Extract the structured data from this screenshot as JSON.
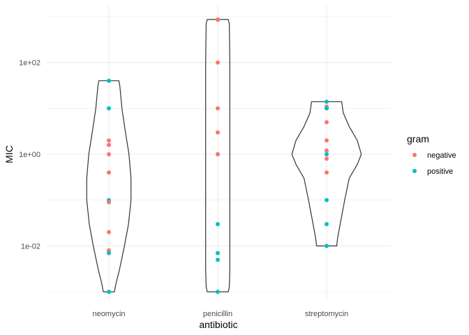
{
  "chart_data": {
    "type": "violin",
    "xlabel": "antibiotic",
    "ylabel": "MIC",
    "y_scale": "log10",
    "ylim": [
      0.001,
      900
    ],
    "y_ticks": [
      {
        "value": 0.01,
        "label": "1e-02"
      },
      {
        "value": 1,
        "label": "1e+00"
      },
      {
        "value": 100,
        "label": "1e+02"
      }
    ],
    "categories": [
      "neomycin",
      "penicillin",
      "streptomycin"
    ],
    "legend": {
      "title": "gram",
      "position": "right",
      "entries": [
        {
          "label": "negative",
          "color": "#F8766D"
        },
        {
          "label": "positive",
          "color": "#00BFC4"
        }
      ]
    },
    "grid": true,
    "violin_outline_color": "#333333",
    "points": [
      {
        "category": "neomycin",
        "value": 40,
        "gram": "positive"
      },
      {
        "category": "neomycin",
        "value": 10,
        "gram": "positive"
      },
      {
        "category": "neomycin",
        "value": 2,
        "gram": "negative"
      },
      {
        "category": "neomycin",
        "value": 1.6,
        "gram": "negative"
      },
      {
        "category": "neomycin",
        "value": 1,
        "gram": "negative"
      },
      {
        "category": "neomycin",
        "value": 0.4,
        "gram": "negative"
      },
      {
        "category": "neomycin",
        "value": 0.1,
        "gram": "positive"
      },
      {
        "category": "neomycin",
        "value": 0.09,
        "gram": "negative"
      },
      {
        "category": "neomycin",
        "value": 0.02,
        "gram": "negative"
      },
      {
        "category": "neomycin",
        "value": 0.008,
        "gram": "negative"
      },
      {
        "category": "neomycin",
        "value": 0.007,
        "gram": "positive"
      },
      {
        "category": "neomycin",
        "value": 0.001,
        "gram": "positive"
      },
      {
        "category": "penicillin",
        "value": 870,
        "gram": "negative"
      },
      {
        "category": "penicillin",
        "value": 850,
        "gram": "negative"
      },
      {
        "category": "penicillin",
        "value": 100,
        "gram": "negative"
      },
      {
        "category": "penicillin",
        "value": 10,
        "gram": "negative"
      },
      {
        "category": "penicillin",
        "value": 3,
        "gram": "negative"
      },
      {
        "category": "penicillin",
        "value": 1,
        "gram": "positive"
      },
      {
        "category": "penicillin",
        "value": 1,
        "gram": "negative"
      },
      {
        "category": "penicillin",
        "value": 0.03,
        "gram": "positive"
      },
      {
        "category": "penicillin",
        "value": 0.007,
        "gram": "positive"
      },
      {
        "category": "penicillin",
        "value": 0.005,
        "gram": "positive"
      },
      {
        "category": "penicillin",
        "value": 0.001,
        "gram": "positive"
      },
      {
        "category": "streptomycin",
        "value": 14,
        "gram": "positive"
      },
      {
        "category": "streptomycin",
        "value": 11,
        "gram": "negative"
      },
      {
        "category": "streptomycin",
        "value": 10,
        "gram": "positive"
      },
      {
        "category": "streptomycin",
        "value": 5,
        "gram": "negative"
      },
      {
        "category": "streptomycin",
        "value": 2,
        "gram": "negative"
      },
      {
        "category": "streptomycin",
        "value": 1.2,
        "gram": "negative"
      },
      {
        "category": "streptomycin",
        "value": 1,
        "gram": "positive"
      },
      {
        "category": "streptomycin",
        "value": 0.8,
        "gram": "negative"
      },
      {
        "category": "streptomycin",
        "value": 0.4,
        "gram": "negative"
      },
      {
        "category": "streptomycin",
        "value": 0.1,
        "gram": "positive"
      },
      {
        "category": "streptomycin",
        "value": 0.03,
        "gram": "positive"
      },
      {
        "category": "streptomycin",
        "value": 0.01,
        "gram": "positive"
      }
    ],
    "violins": [
      {
        "category": "neomycin",
        "profile": [
          {
            "value": 0.001,
            "density": 0.22
          },
          {
            "value": 0.0015,
            "density": 0.28
          },
          {
            "value": 0.003,
            "density": 0.42
          },
          {
            "value": 0.01,
            "density": 0.62
          },
          {
            "value": 0.03,
            "density": 0.78
          },
          {
            "value": 0.1,
            "density": 0.88
          },
          {
            "value": 0.3,
            "density": 0.88
          },
          {
            "value": 1,
            "density": 0.8
          },
          {
            "value": 3,
            "density": 0.66
          },
          {
            "value": 10,
            "density": 0.52
          },
          {
            "value": 30,
            "density": 0.44
          },
          {
            "value": 40,
            "density": 0.4
          }
        ]
      },
      {
        "category": "penicillin",
        "profile": [
          {
            "value": 0.001,
            "density": 0.42
          },
          {
            "value": 0.0013,
            "density": 0.46
          },
          {
            "value": 0.003,
            "density": 0.48
          },
          {
            "value": 0.01,
            "density": 0.48
          },
          {
            "value": 0.1,
            "density": 0.48
          },
          {
            "value": 1,
            "density": 0.48
          },
          {
            "value": 10,
            "density": 0.48
          },
          {
            "value": 100,
            "density": 0.48
          },
          {
            "value": 700,
            "density": 0.46
          },
          {
            "value": 870,
            "density": 0.42
          }
        ]
      },
      {
        "category": "streptomycin",
        "profile": [
          {
            "value": 0.01,
            "density": 0.4
          },
          {
            "value": 0.015,
            "density": 0.44
          },
          {
            "value": 0.03,
            "density": 0.54
          },
          {
            "value": 0.1,
            "density": 0.72
          },
          {
            "value": 0.3,
            "density": 0.9
          },
          {
            "value": 0.6,
            "density": 1.22
          },
          {
            "value": 1,
            "density": 1.38
          },
          {
            "value": 2,
            "density": 1.22
          },
          {
            "value": 4,
            "density": 0.9
          },
          {
            "value": 8,
            "density": 0.66
          },
          {
            "value": 14,
            "density": 0.6
          }
        ]
      }
    ]
  }
}
